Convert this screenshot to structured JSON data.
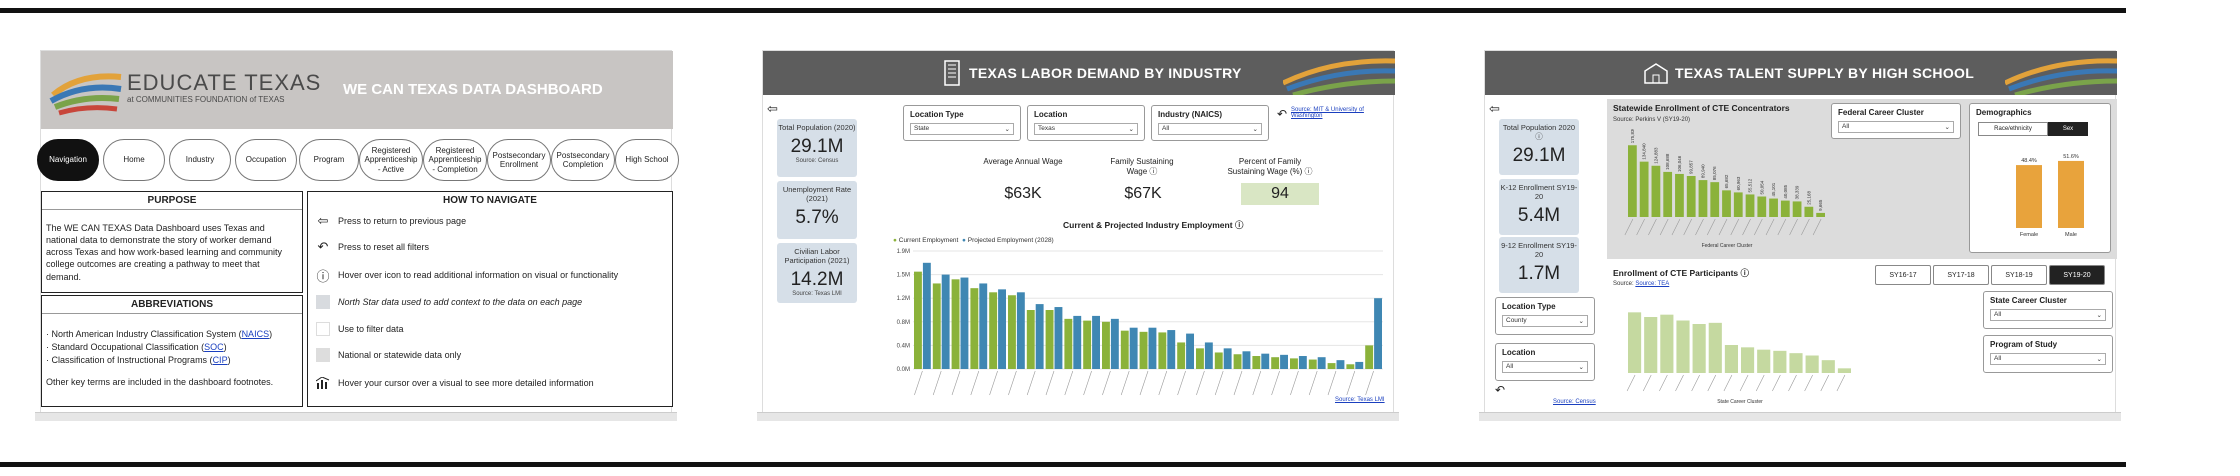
{
  "panel1": {
    "logo_main": "EDUCATE TEXAS",
    "logo_sub": "at COMMUNITIES FOUNDATION of TEXAS",
    "dashboard_title": "WE CAN TEXAS DATA DASHBOARD",
    "nav": [
      "Navigation",
      "Home",
      "Industry",
      "Occupation",
      "Program",
      "Registered Apprenticeship - Active",
      "Registered Apprenticeship - Completion",
      "Postsecondary Enrollment",
      "Postsecondary Completion",
      "High School"
    ],
    "purpose_title": "PURPOSE",
    "purpose_text": "The WE CAN TEXAS Data Dashboard uses Texas and national data to demonstrate the story of worker demand across Texas and how work-based learning and community college outcomes are creating a pathway to meet that demand.",
    "abbr_title": "ABBREVIATIONS",
    "abbr": [
      {
        "pre": "· North American Industry Classification System (",
        "code": "NAICS",
        "post": ")"
      },
      {
        "pre": "· Standard Occupational Classification (",
        "code": "SOC",
        "post": ")"
      },
      {
        "pre": "· Classification of Instructional Programs (",
        "code": "CIP",
        "post": ")"
      }
    ],
    "abbr_note": "Other key terms are included in the dashboard footnotes.",
    "how_title": "HOW TO NAVIGATE",
    "how": [
      {
        "icon": "back-arrow-icon",
        "text": "Press to return to previous page"
      },
      {
        "icon": "reset-icon",
        "text": "Press to reset all filters"
      },
      {
        "icon": "info-icon",
        "text": "Hover over icon to read additional information on visual or functionality"
      },
      {
        "icon": "north-star-swatch-icon",
        "text": "North Star data used to add context to the data on each page"
      },
      {
        "icon": "filter-swatch-icon",
        "text": "Use to filter data"
      },
      {
        "icon": "statewide-swatch-icon",
        "text": "National or statewide data only"
      },
      {
        "icon": "chart-hover-icon",
        "text": "Hover your cursor over a visual to see more detailed information"
      }
    ]
  },
  "panel2": {
    "title": "TEXAS LABOR DEMAND BY INDUSTRY",
    "kpis": [
      {
        "label": "Total Population (2020)",
        "value": "29.1M",
        "source": "Source: Census"
      },
      {
        "label": "Unemployment Rate (2021)",
        "value": "5.7%",
        "source": ""
      },
      {
        "label": "Civilian Labor Participation (2021)",
        "value": "14.2M",
        "source": "Source: Texas LMI"
      }
    ],
    "filters": [
      {
        "label": "Location Type",
        "value": "State"
      },
      {
        "label": "Location",
        "value": "Texas"
      },
      {
        "label": "Industry (NAICS)",
        "value": "All"
      }
    ],
    "source_top": "Source: MIT & University of Washington",
    "metrics": [
      {
        "label": "Average Annual Wage",
        "value": "$63K"
      },
      {
        "label": "Family Sustaining Wage",
        "value": "$67K"
      },
      {
        "label": "Percent of Family Sustaining Wage (%)",
        "value": "94"
      }
    ],
    "chart_title": "Current & Projected Industry Employment",
    "source_bottom": "Source: Texas LMI"
  },
  "panel3": {
    "title": "TEXAS TALENT SUPPLY BY HIGH SCHOOL",
    "kpis": [
      {
        "label": "Total Population 2020",
        "value": "29.1M"
      },
      {
        "label": "K-12 Enrollment SY19-20",
        "value": "5.4M"
      },
      {
        "label": "9-12 Enrollment SY19-20",
        "value": "1.7M"
      }
    ],
    "left_filters": [
      {
        "label": "Location Type",
        "value": "County"
      },
      {
        "label": "Location",
        "value": "All"
      }
    ],
    "source_left": "Source: Census",
    "cte_title": "Statewide Enrollment of CTE Concentrators",
    "cte_source": "Source: Perkins V (SY19-20)",
    "fed_cluster": {
      "label": "Federal Career Cluster",
      "value": "All"
    },
    "demographics": {
      "label": "Demographics",
      "options": [
        "Race/ethnicity",
        "Sex"
      ]
    },
    "part_title": "Enrollment of CTE Participants",
    "part_source": "Source: TEA",
    "years": [
      "SY16-17",
      "SY17-18",
      "SY18-19",
      "SY19-20"
    ],
    "state_cluster": {
      "label": "State Career Cluster",
      "value": "All"
    },
    "program": {
      "label": "Program of Study",
      "value": "All"
    }
  },
  "chart_data": [
    {
      "type": "bar",
      "title": "Current & Projected Industry Employment",
      "series": [
        {
          "name": "Current Employment",
          "values": [
            1.65,
            1.45,
            1.52,
            1.37,
            1.3,
            1.25,
            1.0,
            1.0,
            0.85,
            0.82,
            0.8,
            0.65,
            0.63,
            0.62,
            0.45,
            0.35,
            0.28,
            0.25,
            0.22,
            0.2,
            0.18,
            0.16,
            0.1,
            0.08,
            0.4
          ]
        },
        {
          "name": "Projected Employment (2028)",
          "values": [
            1.8,
            1.6,
            1.55,
            1.45,
            1.35,
            1.3,
            1.1,
            1.05,
            0.9,
            0.9,
            0.85,
            0.7,
            0.7,
            0.66,
            0.6,
            0.45,
            0.35,
            0.3,
            0.26,
            0.24,
            0.22,
            0.2,
            0.15,
            0.12,
            1.2
          ]
        }
      ],
      "ylim": [
        0,
        2.0
      ],
      "ytick_labels": [
        "0.0M",
        "0.4M",
        "0.8M",
        "1.2M",
        "1.5M",
        "1.9M"
      ]
    },
    {
      "type": "bar",
      "title": "Statewide Enrollment of CTE Concentrators",
      "values": [
        175,
        135,
        125,
        110,
        105,
        100,
        90,
        85,
        65,
        60,
        55,
        50,
        45,
        40,
        38,
        25,
        10
      ],
      "data_labels": [
        "175,830",
        "134,840",
        "124,883",
        "108,688",
        "106,046",
        "99,857",
        "89,940",
        "85,076",
        "65,682",
        "60,963",
        "55,512",
        "50,054",
        "45,101",
        "40,085",
        "38,339",
        "25,168",
        "9,665"
      ],
      "ylim": [
        0,
        200
      ],
      "xlabel": "Federal Career Cluster"
    },
    {
      "type": "bar",
      "title": "Demographics",
      "categories": [
        "Female",
        "Male"
      ],
      "values": [
        48.4,
        51.6
      ],
      "data_labels": [
        "48.4%",
        "51.6%"
      ],
      "ylim": [
        0,
        60
      ]
    },
    {
      "type": "bar",
      "title": "Enrollment of CTE Participants",
      "values": [
        260,
        240,
        250,
        225,
        210,
        215,
        120,
        110,
        100,
        95,
        85,
        75,
        55,
        20
      ],
      "ylim": [
        0,
        300
      ],
      "xlabel": "State Career Cluster"
    }
  ]
}
